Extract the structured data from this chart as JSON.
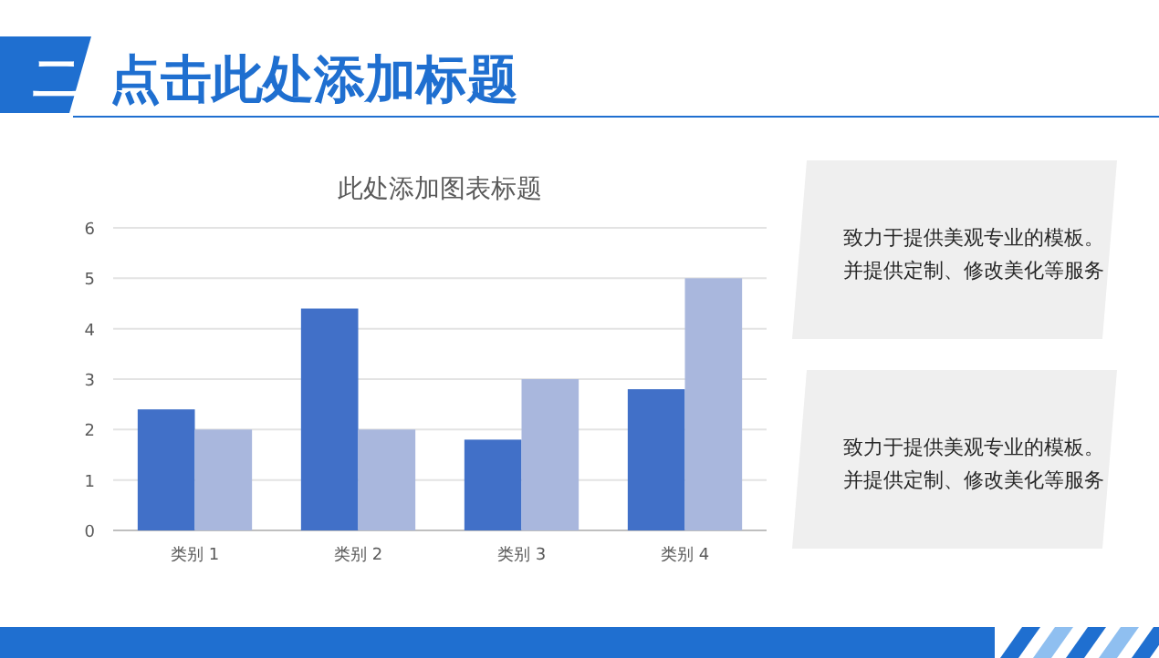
{
  "chart_data": [
    {
      "type": "other",
      "title": "点击此处添加标题",
      "annotations": [
        "二"
      ]
    },
    {
      "type": "bar",
      "title": "此处添加图表标题",
      "categories": [
        "类别 1",
        "类别 2",
        "类别 3",
        "类别 4"
      ],
      "series": [
        {
          "color": "#4170c8",
          "values": [
            2.4,
            4.4,
            1.8,
            2.8
          ]
        },
        {
          "color": "#a9b7dd",
          "values": [
            2,
            2,
            3,
            5
          ]
        }
      ],
      "ylim": [
        0,
        6
      ],
      "yticks": [
        0,
        1,
        2,
        3,
        4,
        5,
        6
      ],
      "grid": "y"
    },
    {
      "type": "other",
      "annotations": [
        "致力于提供美观专业的模板。并提供定制、修改美化等服务"
      ]
    },
    {
      "type": "other",
      "annotations": [
        "致力于提供美观专业的模板。并提供定制、修改美化等服务"
      ]
    }
  ]
}
